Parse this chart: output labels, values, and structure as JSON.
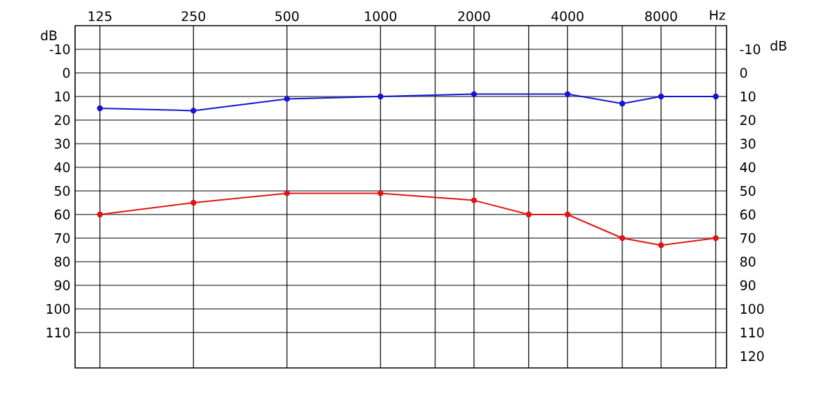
{
  "chart_data": {
    "type": "line",
    "xlabel": "Hz",
    "ylabel": "dB",
    "y2label": "dB",
    "x": [
      125,
      250,
      500,
      1000,
      2000,
      4000,
      6000,
      8000,
      12000
    ],
    "series": [
      {
        "color": "#1414d2",
        "values": [
          15,
          16,
          11,
          10,
          9,
          9,
          13,
          10,
          10
        ]
      },
      {
        "color": "#e01414",
        "x": [
          125,
          250,
          500,
          1000,
          2000,
          3000,
          4000,
          6000,
          8000,
          12000
        ],
        "values": [
          60,
          55,
          51,
          51,
          54,
          60,
          60,
          70,
          73,
          70
        ]
      }
    ],
    "log": "x",
    "xlim": [
      104,
      13000
    ],
    "xticks": [
      125,
      250,
      500,
      1000,
      {
        "value": 1500,
        "label": null
      },
      2000,
      {
        "value": 3000,
        "label": null
      },
      4000,
      {
        "value": 6000,
        "label": null
      },
      8000,
      {
        "value": 12000,
        "label": null
      }
    ],
    "ylim": [
      125,
      -20
    ],
    "yticks": [
      -10,
      0,
      10,
      20,
      30,
      40,
      50,
      60,
      70,
      80,
      90,
      100,
      110
    ],
    "y2lim": [
      125,
      -20
    ],
    "y2ticks": [
      -10,
      0,
      10,
      20,
      30,
      40,
      50,
      60,
      70,
      80,
      90,
      100,
      110,
      120
    ],
    "grid": true,
    "marker": "circle",
    "line_style": "solid"
  }
}
